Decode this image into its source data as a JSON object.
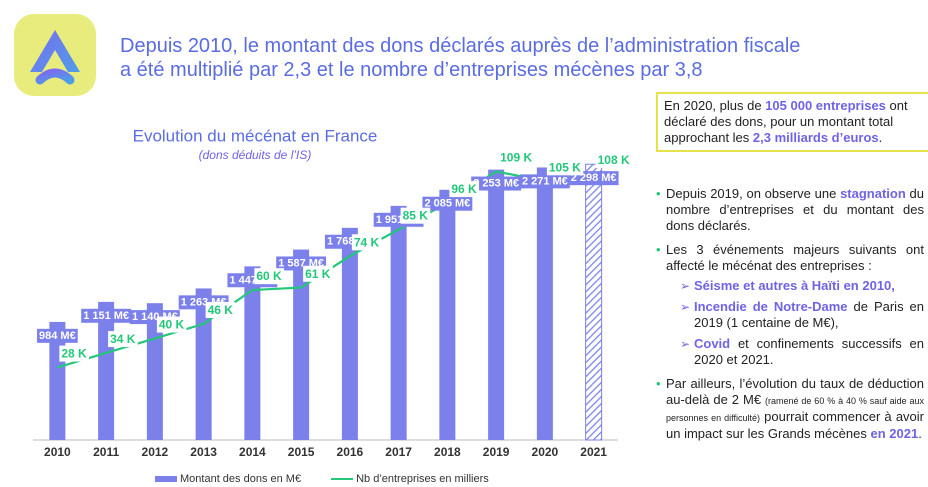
{
  "header": {
    "title_lines": [
      "Depuis 2010, le montant des dons déclarés auprès de l’administration fiscale",
      "a été multiplié par 2,3 et le nombre d’entreprises mécènes par 3,8"
    ]
  },
  "chart_data": {
    "type": "bar_line",
    "title": "Evolution du mécénat en France",
    "subtitle": "(dons déduits de l’IS)",
    "categories": [
      "2010",
      "2011",
      "2012",
      "2013",
      "2014",
      "2015",
      "2016",
      "2017",
      "2018",
      "2019",
      "2020",
      "2021"
    ],
    "hatched_categories": [
      "2021"
    ],
    "series": [
      {
        "name": "Montant des dons en M€",
        "type": "bar",
        "color": "#7b80ea",
        "values": [
          984,
          1151,
          1140,
          1263,
          1447,
          1587,
          1768,
          1951,
          2085,
          2253,
          2271,
          2298
        ],
        "value_labels": [
          "984 M€",
          "1 151 M€",
          "1 140 M€",
          "1 263 M€",
          "1 447 M€",
          "1 587 M€",
          "1 768 M€",
          "1 951 M€",
          "2 085 M€",
          "2 253 M€",
          "2 271 M€",
          "2 298 M€"
        ]
      },
      {
        "name": "Nb d’entreprises en milliers",
        "type": "line",
        "axis": "y2",
        "color": "#22c77a",
        "values": [
          28,
          34,
          40,
          46,
          60,
          61,
          74,
          85,
          96,
          109,
          105,
          108
        ],
        "value_labels": [
          "28 K",
          "34 K",
          "40 K",
          "46 K",
          "60 K",
          "61 K",
          "74 K",
          "85 K",
          "96 K",
          "109 K",
          "105 K",
          "108 K"
        ]
      }
    ],
    "ylim": [
      0,
      2500
    ],
    "y2lim": [
      -2,
      122
    ],
    "legend": "bottom"
  },
  "highlight_box": {
    "runs": [
      {
        "text": "En 2020, plus de "
      },
      {
        "text": "105 000 entreprises",
        "style": "strong"
      },
      {
        "text": " ont déclaré des dons, pour un montant total approchant les "
      },
      {
        "text": "2,3 milliards d’euros",
        "style": "strong"
      },
      {
        "text": "."
      }
    ]
  },
  "bullets": [
    {
      "runs": [
        {
          "text": "Depuis 2019, on observe une "
        },
        {
          "text": "stagnation",
          "style": "strong"
        },
        {
          "text": " du nombre d’entreprises et du montant des dons déclarés."
        }
      ]
    },
    {
      "runs": [
        {
          "text": "Les 3 événements majeurs suivants ont affecté le mécénat des entreprises :"
        }
      ],
      "subitems": [
        {
          "runs": [
            {
              "text": "Séisme et autres à Haïti en 2010,",
              "style": "strong"
            }
          ]
        },
        {
          "runs": [
            {
              "text": "Incendie de Notre-Dame",
              "style": "strong"
            },
            {
              "text": " de Paris en 2019 (1 centaine de M€),"
            }
          ]
        },
        {
          "runs": [
            {
              "text": "Covid",
              "style": "strong"
            },
            {
              "text": " et confinements successifs en 2020 et 2021."
            }
          ]
        }
      ]
    },
    {
      "runs": [
        {
          "text": "Par ailleurs, l’évolution du taux de déduction au-delà de 2 M€ "
        },
        {
          "text": "(ramené de 60 % à 40 % sauf aide aux personnes en difficulté)",
          "style": "small"
        },
        {
          "text": " pourrait commencer à avoir un impact sur les Grands mécènes "
        },
        {
          "text": "en 2021",
          "style": "strong"
        },
        {
          "text": "."
        }
      ]
    }
  ]
}
